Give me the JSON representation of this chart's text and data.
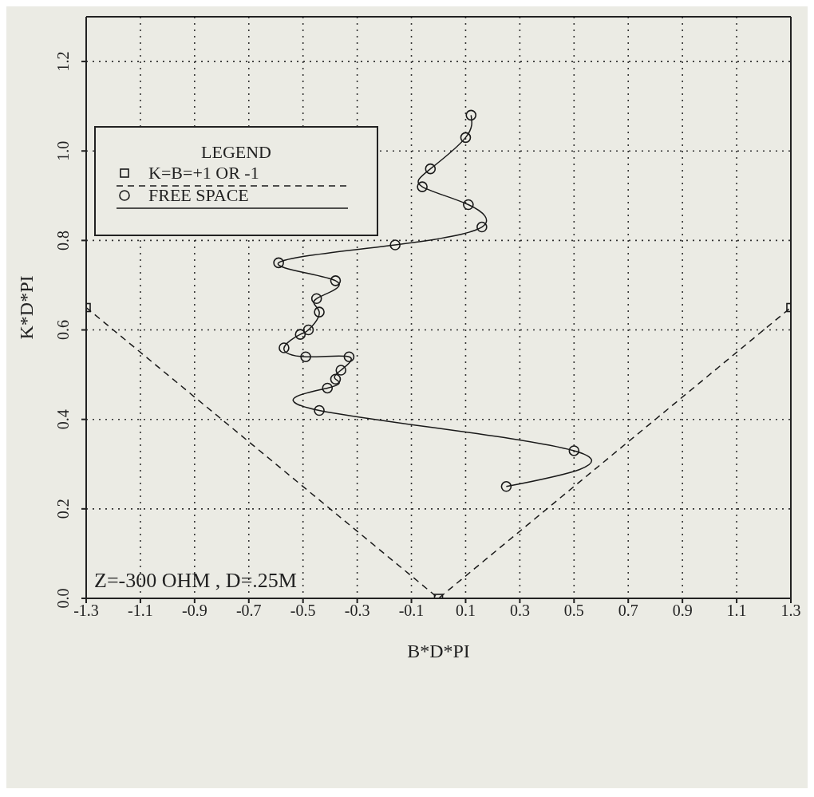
{
  "chart_data": {
    "type": "line",
    "xlabel": "B*D*PI",
    "ylabel": "K*D*PI",
    "legend_title": "LEGEND",
    "xlim": [
      -1.3,
      1.3
    ],
    "ylim": [
      0,
      1.3
    ],
    "xticks": [
      -1.3,
      -1.1,
      -0.9,
      -0.7,
      -0.5,
      -0.3,
      -0.1,
      0.1,
      0.3,
      0.5,
      0.7,
      0.9,
      1.1,
      1.3
    ],
    "yticks": [
      {
        "value": 0,
        "label": "0.0"
      },
      0.2,
      0.4,
      0.6,
      0.8,
      {
        "value": 1,
        "label": "1.0"
      },
      1.2
    ],
    "grid": true,
    "legend": "top left",
    "annotations": [
      "Z=-300 OHM , D=.25M"
    ],
    "series": [
      {
        "name": "K=B=+1 OR -1",
        "color": "#1a1a1a",
        "marker": "square",
        "line_style": "dashed",
        "x": [
          -1.3,
          0,
          1.3
        ],
        "values": [
          0.65,
          0,
          0.65
        ]
      },
      {
        "name": "FREE SPACE",
        "color": "#1a1a1a",
        "marker": "circle",
        "line_style": "solid",
        "x": [
          0.25,
          0.5,
          -0.44,
          -0.41,
          -0.38,
          -0.36,
          -0.33,
          -0.49,
          -0.57,
          -0.51,
          -0.48,
          -0.44,
          -0.45,
          -0.38,
          -0.59,
          -0.16,
          0.16,
          0.11,
          -0.06,
          -0.03,
          0.1,
          0.12
        ],
        "values": [
          0.25,
          0.33,
          0.42,
          0.47,
          0.49,
          0.51,
          0.54,
          0.54,
          0.56,
          0.59,
          0.6,
          0.64,
          0.67,
          0.71,
          0.75,
          0.79,
          0.83,
          0.88,
          0.92,
          0.96,
          1.03,
          1.08
        ]
      }
    ]
  }
}
